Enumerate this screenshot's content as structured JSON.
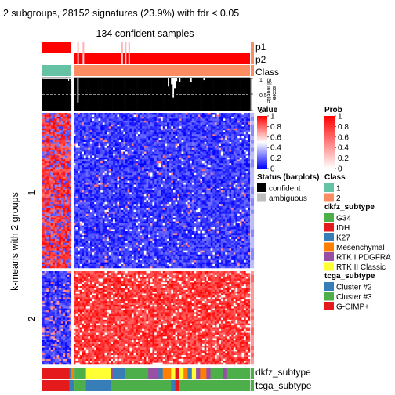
{
  "chart_data": {
    "type": "heatmap",
    "title": "2 subgroups, 28152 signatures (23.9%) with fdr < 0.05",
    "subtitle": "134 confident samples",
    "ylabel": "k-means with 2 groups",
    "row_groups": [
      "1",
      "2"
    ],
    "column_groups": [
      {
        "class": "1",
        "fraction": 0.14
      },
      {
        "class": "2",
        "fraction": 0.86
      }
    ],
    "top_annotations": [
      "p1",
      "p2",
      "Class"
    ],
    "silhouette": {
      "label": "Silhouette\nscore",
      "ticks": [
        "1",
        "0.5",
        "0"
      ],
      "dashed_line": 0.5
    },
    "bottom_annotations": [
      "dkfz_subtype",
      "tcga_subtype"
    ],
    "legends": {
      "value": {
        "title": "Value",
        "ticks": [
          "1",
          "0.8",
          "0.6",
          "0.4",
          "0.2",
          "0"
        ],
        "colors": [
          "#ff0000",
          "#ffffff",
          "#0000ff"
        ]
      },
      "prob": {
        "title": "Prob",
        "ticks": [
          "1",
          "0.8",
          "0.6",
          "0.4",
          "0.2",
          "0"
        ],
        "colors": [
          "#ff0000",
          "#ffffff"
        ]
      },
      "status": {
        "title": "Status (barplots)",
        "items": [
          {
            "label": "confident",
            "color": "#000000"
          },
          {
            "label": "ambiguous",
            "color": "#bebebe"
          }
        ]
      },
      "class": {
        "title": "Class",
        "items": [
          {
            "label": "1",
            "color": "#66c2a5"
          },
          {
            "label": "2",
            "color": "#fc8d62"
          }
        ]
      },
      "dkfz_subtype": {
        "title": "dkfz_subtype",
        "items": [
          {
            "label": "G34",
            "color": "#4daf4a"
          },
          {
            "label": "IDH",
            "color": "#e41a1c"
          },
          {
            "label": "K27",
            "color": "#377eb8"
          },
          {
            "label": "Mesenchymal",
            "color": "#ff7f00"
          },
          {
            "label": "RTK I PDGFRA",
            "color": "#984ea3"
          },
          {
            "label": "RTK II Classic",
            "color": "#ffff33"
          }
        ]
      },
      "tcga_subtype": {
        "title": "tcga_subtype",
        "items": [
          {
            "label": "Cluster #2",
            "color": "#377eb8"
          },
          {
            "label": "Cluster #3",
            "color": "#4daf4a"
          },
          {
            "label": "G-CIMP+",
            "color": "#e41a1c"
          }
        ]
      }
    }
  }
}
